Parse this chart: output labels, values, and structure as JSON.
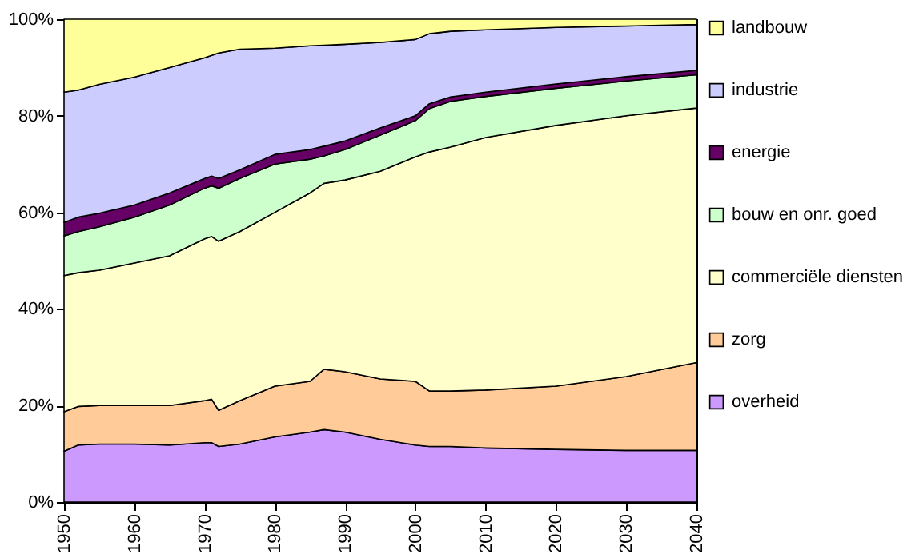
{
  "chart_data": {
    "type": "area",
    "stacked": true,
    "legend": "right",
    "grid": false,
    "x": [
      1950,
      1952,
      1955,
      1960,
      1965,
      1970,
      1971,
      1972,
      1975,
      1980,
      1985,
      1987,
      1990,
      1995,
      2000,
      2002,
      2005,
      2010,
      2020,
      2030,
      2040
    ],
    "xlim": [
      1950,
      2040
    ],
    "xticks": [
      1950,
      1960,
      1970,
      1980,
      1990,
      2000,
      2010,
      2020,
      2030,
      2040
    ],
    "ylim": [
      0,
      100
    ],
    "yticks": [
      {
        "value": 0,
        "label": "0%"
      },
      {
        "value": 20,
        "label": "20%"
      },
      {
        "value": 40,
        "label": "40%"
      },
      {
        "value": 60,
        "label": "60%"
      },
      {
        "value": 80,
        "label": "80%"
      },
      {
        "value": 100,
        "label": "100%"
      }
    ],
    "series": [
      {
        "name": "overheid",
        "color": "#cc99ff",
        "values": [
          10.5,
          11.8,
          12,
          12,
          11.8,
          12.3,
          12.3,
          11.5,
          12,
          13.5,
          14.5,
          15,
          14.5,
          13,
          11.8,
          11.5,
          11.5,
          11.2,
          10.9,
          10.7,
          10.7
        ]
      },
      {
        "name": "zorg",
        "color": "#ffcc99",
        "values": [
          8.2,
          8,
          8,
          8,
          8.2,
          8.7,
          9,
          7.5,
          9,
          10.5,
          10.5,
          12.5,
          12.5,
          12.5,
          13.2,
          11.5,
          11.5,
          12,
          13.1,
          15.3,
          18.2
        ]
      },
      {
        "name": "commerciële diensten",
        "color": "#ffffcc",
        "values": [
          28.2,
          27.7,
          28,
          29.5,
          31,
          33.5,
          33.7,
          35,
          35,
          36,
          39,
          38.5,
          39.7,
          43,
          46.5,
          49.5,
          50.5,
          52.3,
          54,
          54,
          52.7
        ]
      },
      {
        "name": "bouw en onr. goed",
        "color": "#ccffcc",
        "values": [
          8.2,
          8.5,
          9,
          9.5,
          10.5,
          10.5,
          10.5,
          11,
          11,
          10,
          7,
          5.7,
          6.3,
          7.5,
          7.5,
          9,
          9.5,
          8.5,
          7.7,
          7.2,
          6.9
        ]
      },
      {
        "name": "energie",
        "color": "#660066",
        "values": [
          2.8,
          3,
          2.8,
          2.5,
          2.5,
          2,
          2,
          2,
          1.8,
          2,
          2,
          2,
          1.8,
          1.5,
          1,
          1,
          0.9,
          0.9,
          0.9,
          0.9,
          0.9
        ]
      },
      {
        "name": "industrie",
        "color": "#ccccff",
        "values": [
          27,
          26.3,
          26.7,
          26.5,
          26,
          25,
          25,
          26,
          25,
          22,
          21.5,
          20.9,
          20,
          17.7,
          15.8,
          14.5,
          13.6,
          12.9,
          11.7,
          10.5,
          9.5
        ]
      },
      {
        "name": "landbouw",
        "color": "#ffff99",
        "values": [
          15.1,
          14.7,
          13.5,
          12,
          10,
          8,
          7.5,
          7,
          6.2,
          6,
          5.5,
          5.4,
          5.2,
          4.8,
          4.2,
          3,
          2.5,
          2.2,
          1.7,
          1.4,
          1.1
        ]
      }
    ]
  }
}
